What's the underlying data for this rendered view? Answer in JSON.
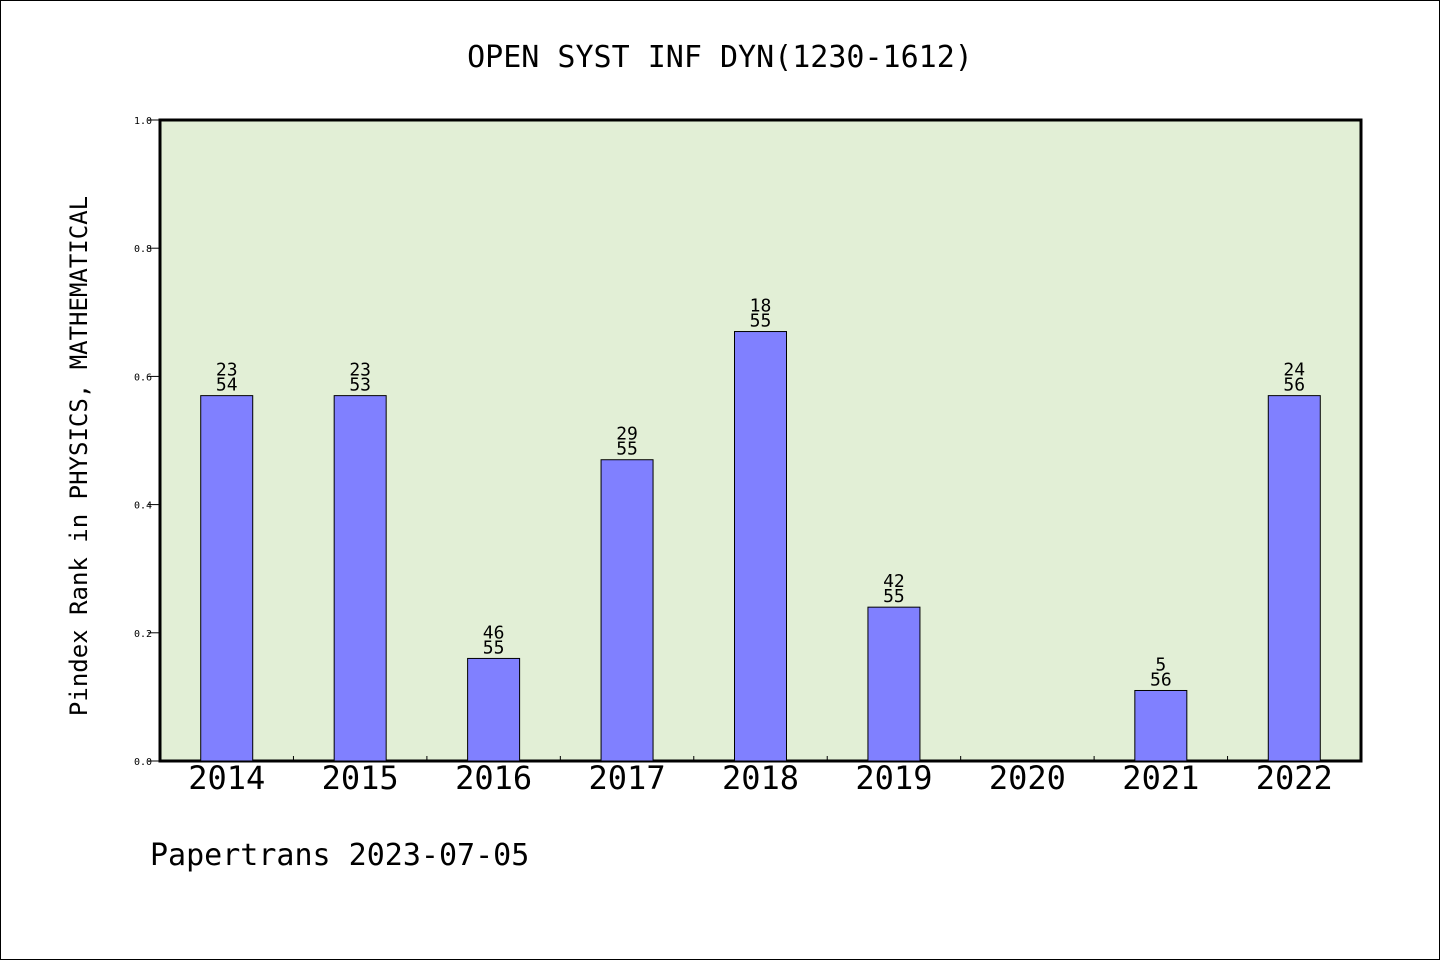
{
  "chart_data": {
    "type": "bar",
    "title": "OPEN SYST INF DYN(1230-1612)",
    "xlabel": "",
    "ylabel": "Pindex Rank in PHYSICS, MATHEMATICAL",
    "categories": [
      "2014",
      "2015",
      "2016",
      "2017",
      "2018",
      "2019",
      "2020",
      "2021",
      "2022"
    ],
    "values": [
      0.57,
      0.57,
      0.16,
      0.47,
      0.67,
      0.24,
      null,
      0.11,
      0.57
    ],
    "bar_labels": [
      [
        "23",
        "54"
      ],
      [
        "23",
        "53"
      ],
      [
        "46",
        "55"
      ],
      [
        "29",
        "55"
      ],
      [
        "18",
        "55"
      ],
      [
        "42",
        "55"
      ],
      null,
      [
        "5",
        "56"
      ],
      [
        "24",
        "56"
      ]
    ],
    "ylim": [
      0,
      1.0
    ],
    "yticks": [
      "0.0",
      "0.2",
      "0.4",
      "0.6",
      "0.8",
      "1.0"
    ],
    "grid": false,
    "legend": "none",
    "colors": {
      "plot_background": "#e2efd6",
      "bar_fill": "#8080ff",
      "bar_stroke": "#000000"
    }
  },
  "footer": "Papertrans 2023-07-05"
}
